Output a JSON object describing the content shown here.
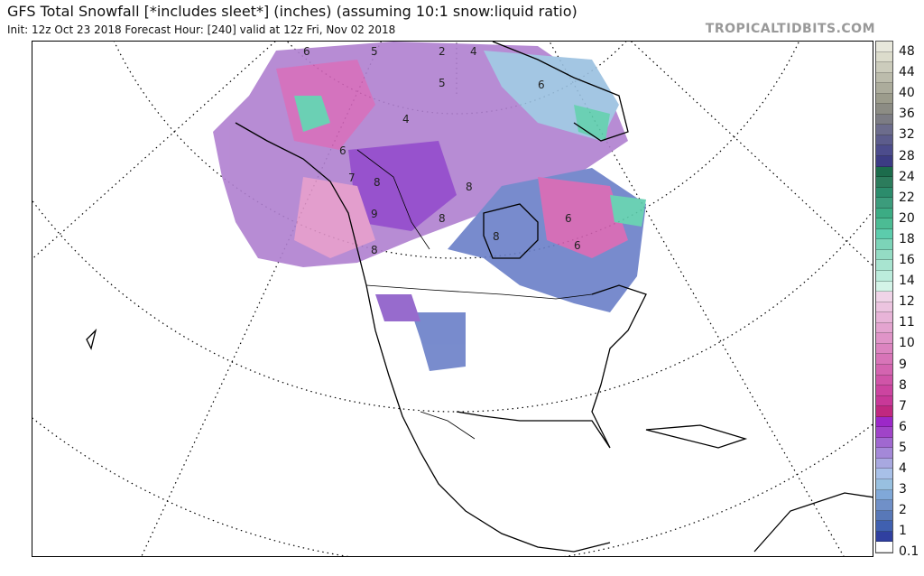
{
  "header": {
    "title": "GFS Total Snowfall [*includes sleet*] (inches) (assuming 10:1 snow:liquid ratio)",
    "subtitle": "Init: 12z Oct 23 2018   Forecast Hour: [240]   valid at 12z Fri, Nov 02 2018",
    "brand": "TROPICALTIDBITS.COM"
  },
  "map": {
    "region": "North America",
    "projection": "polar stereographic",
    "variable": "total snowfall (inches)"
  },
  "colorbar": {
    "labels": [
      "48",
      "44",
      "40",
      "36",
      "32",
      "28",
      "24",
      "22",
      "20",
      "18",
      "16",
      "14",
      "12",
      "11",
      "10",
      "9",
      "8",
      "7",
      "6",
      "5",
      "4",
      "3",
      "2",
      "1",
      "0.1"
    ],
    "colors": [
      "#e8e8dc",
      "#dcdccc",
      "#ccccbc",
      "#bcbcac",
      "#acac9c",
      "#9c9c8c",
      "#8c8c84",
      "#7c7c84",
      "#6c6c8c",
      "#5c5c8c",
      "#4c4c8c",
      "#3c3c84",
      "#1c6c4c",
      "#2c7c5c",
      "#2c8c6c",
      "#3c9c7c",
      "#3cac84",
      "#4cbc94",
      "#5cccac",
      "#7cd4b8",
      "#94dcc4",
      "#a8e4d0",
      "#bcecdc",
      "#d4f4e8",
      "#f0d4e8",
      "#ecc4e0",
      "#e8b4d8",
      "#e4a4d0",
      "#e094c8",
      "#dc84c0",
      "#d874b8",
      "#d464b0",
      "#d054a8",
      "#cc44a0",
      "#c83898",
      "#c02880",
      "#9c28c8",
      "#a044c8",
      "#a068d0",
      "#a488d8",
      "#a8a8e0",
      "#a8c0e8",
      "#98c0e0",
      "#80a8d8",
      "#7090c8",
      "#5878b8",
      "#4060b0",
      "#3040a0",
      "#ffffff"
    ]
  },
  "map_labels": [
    "6",
    "5",
    "2",
    "4",
    "6",
    "5",
    "4",
    "6",
    "7",
    "8",
    "8",
    "9",
    "8",
    "6",
    "8",
    "8",
    "6"
  ]
}
